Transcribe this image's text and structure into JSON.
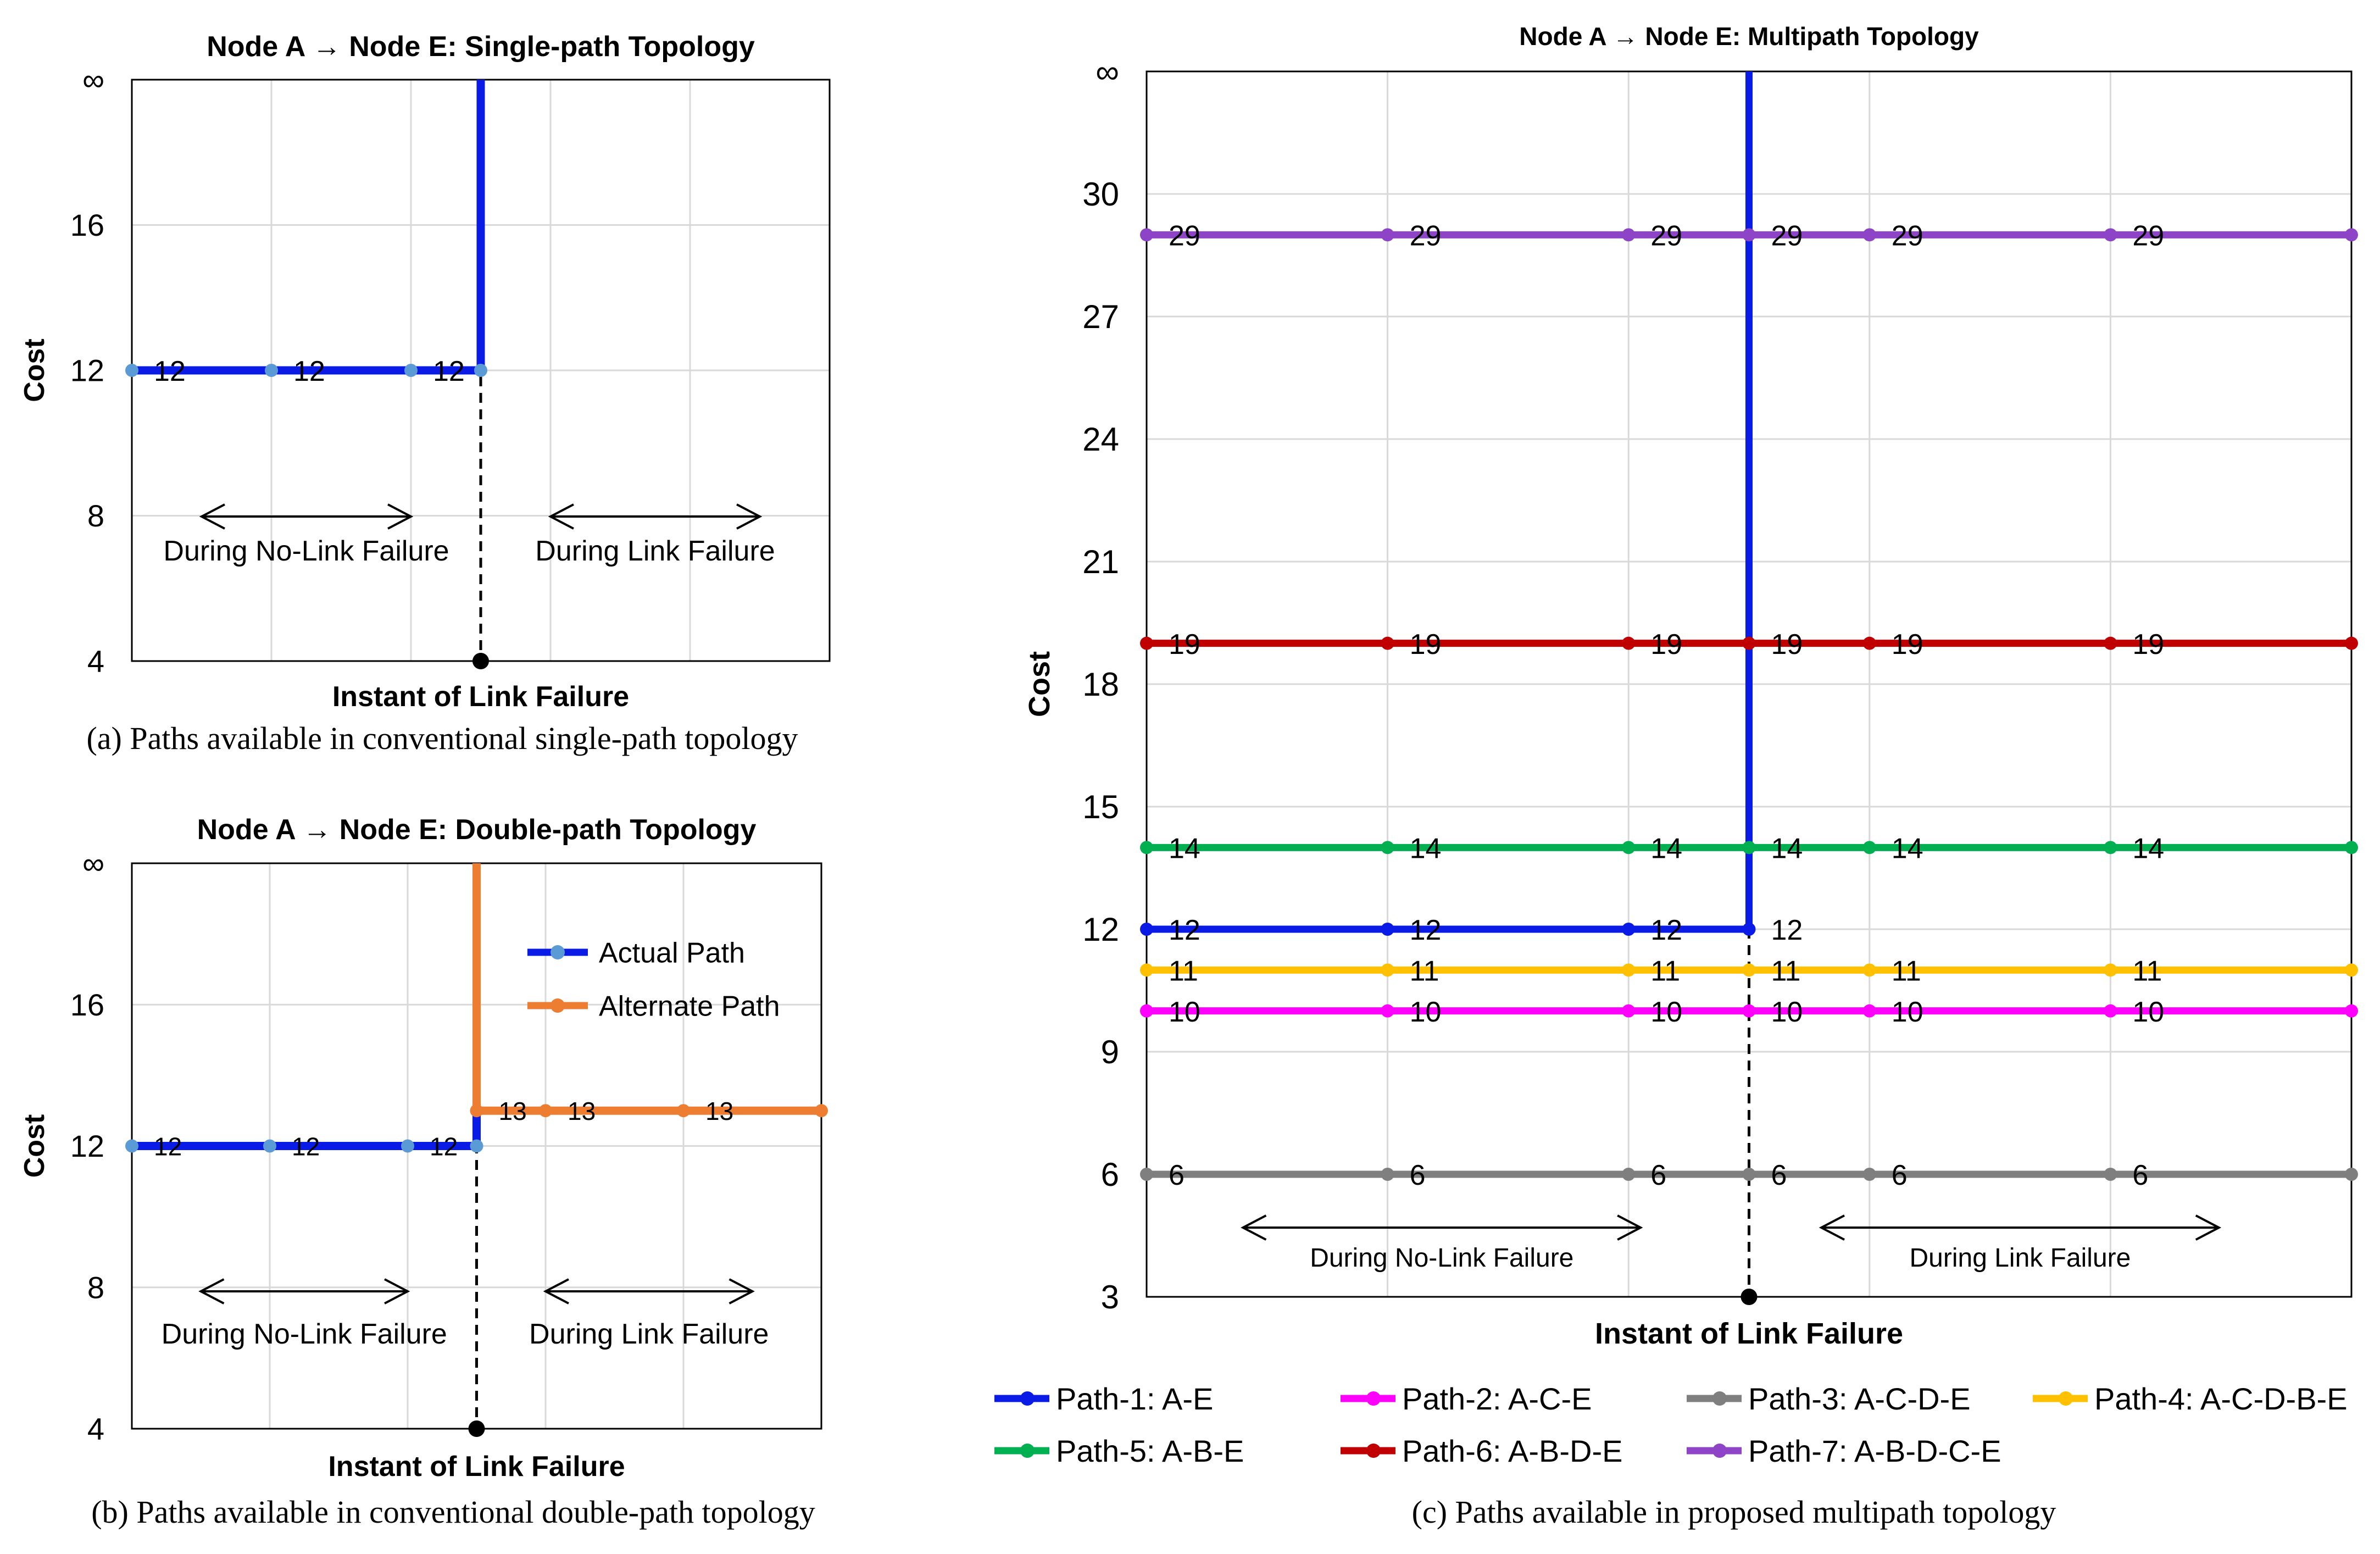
{
  "colors": {
    "actual_path": "#0a1be6",
    "actual_marker": "#5b9bd5",
    "alternate_path": "#ed7d31",
    "failure_line": "#000000",
    "grid": "#d9d9d9"
  },
  "captions": {
    "a": "(a) Paths available in conventional single-path topology",
    "b": "(b) Paths available in conventional double-path topology",
    "c": "(c) Paths available in proposed multipath topology"
  },
  "chart_data": [
    {
      "id": "a",
      "type": "line",
      "title": "Node A → Node E: Single-path Topology",
      "xlabel": "Instant of Link Failure",
      "ylabel": "Cost",
      "yticks": [
        "∞",
        "16",
        "12",
        "8",
        "4"
      ],
      "ytick_values": [
        20,
        16,
        12,
        8,
        4
      ],
      "ylim": [
        4,
        20
      ],
      "xlim": [
        0,
        10
      ],
      "grid": true,
      "failure_x": 5,
      "annotations": [
        {
          "text": "During No-Link Failure",
          "from": 1,
          "to": 4
        },
        {
          "text": "During Link Failure",
          "from": 6,
          "to": 9
        }
      ],
      "series": [
        {
          "name": "Actual Path",
          "color": "#0a1be6",
          "marker_color": "#5b9bd5",
          "x": [
            0,
            2,
            4,
            5,
            5
          ],
          "y": [
            12,
            12,
            12,
            12,
            20
          ],
          "markers": [
            0,
            1,
            2,
            3
          ],
          "labels": [
            "12",
            "12",
            "12",
            ""
          ]
        }
      ]
    },
    {
      "id": "b",
      "type": "line",
      "title": "Node A → Node E: Double-path Topology",
      "xlabel": "Instant of Link Failure",
      "ylabel": "Cost",
      "yticks": [
        "∞",
        "16",
        "12",
        "8",
        "4"
      ],
      "ytick_values": [
        20,
        16,
        12,
        8,
        4
      ],
      "ylim": [
        4,
        20
      ],
      "xlim": [
        0,
        10
      ],
      "grid": true,
      "failure_x": 5,
      "legend": [
        "Actual Path",
        "Alternate Path"
      ],
      "legend_position": "top-right",
      "annotations": [
        {
          "text": "During No-Link Failure",
          "from": 1,
          "to": 4
        },
        {
          "text": "During Link Failure",
          "from": 6,
          "to": 9
        }
      ],
      "series": [
        {
          "name": "Actual Path",
          "color": "#0a1be6",
          "marker_color": "#5b9bd5",
          "x": [
            0,
            2,
            4,
            5,
            5
          ],
          "y": [
            12,
            12,
            12,
            12,
            20
          ],
          "markers": [
            0,
            1,
            2,
            3
          ],
          "labels": [
            "12",
            "12",
            "12",
            ""
          ]
        },
        {
          "name": "Alternate Path",
          "color": "#ed7d31",
          "marker_color": "#ed7d31",
          "x": [
            5,
            5,
            6,
            8,
            10
          ],
          "y": [
            20,
            13,
            13,
            13,
            13
          ],
          "markers": [
            1,
            2,
            3,
            4
          ],
          "labels": [
            "",
            "13",
            "13",
            "13",
            ""
          ]
        }
      ]
    },
    {
      "id": "c",
      "type": "line",
      "title": "Node A → Node E: Multipath Topology",
      "xlabel": "Instant of Link Failure",
      "ylabel": "Cost",
      "yticks": [
        "∞",
        "30",
        "27",
        "24",
        "21",
        "18",
        "15",
        "12",
        "9",
        "6",
        "3"
      ],
      "ytick_values": [
        33,
        30,
        27,
        24,
        21,
        18,
        15,
        12,
        9,
        6,
        3
      ],
      "ylim": [
        3,
        33
      ],
      "xlim": [
        0,
        10
      ],
      "grid": true,
      "failure_x": 5,
      "legend_position": "bottom",
      "annotations": [
        {
          "text": "During No-Link Failure",
          "from": 0.8,
          "to": 4.1
        },
        {
          "text": "During Link Failure",
          "from": 5.6,
          "to": 8.9
        }
      ],
      "series": [
        {
          "name": "Path-1: A-E",
          "color": "#0a1be6",
          "x": [
            0,
            2,
            4,
            5,
            5
          ],
          "y": [
            12,
            12,
            12,
            12,
            33
          ],
          "markers": [
            0,
            1,
            2,
            3
          ],
          "labels": [
            "12",
            "12",
            "12",
            "12"
          ]
        },
        {
          "name": "Path-2: A-C-E",
          "color": "#ff00ff",
          "x": [
            0,
            2,
            4,
            5,
            6,
            8,
            10
          ],
          "y": [
            10,
            10,
            10,
            10,
            10,
            10,
            10
          ],
          "markers": [
            0,
            1,
            2,
            3,
            4,
            5,
            6
          ],
          "labels": [
            "10",
            "10",
            "10",
            "10",
            "10",
            "10",
            ""
          ]
        },
        {
          "name": "Path-3: A-C-D-E",
          "color": "#7f7f7f",
          "x": [
            0,
            2,
            4,
            5,
            6,
            8,
            10
          ],
          "y": [
            6,
            6,
            6,
            6,
            6,
            6,
            6
          ],
          "markers": [
            0,
            1,
            2,
            3,
            4,
            5,
            6
          ],
          "labels": [
            "6",
            "6",
            "6",
            "6",
            "6",
            "6",
            ""
          ]
        },
        {
          "name": "Path-4: A-C-D-B-E",
          "color": "#ffc000",
          "x": [
            0,
            2,
            4,
            5,
            6,
            8,
            10
          ],
          "y": [
            11,
            11,
            11,
            11,
            11,
            11,
            11
          ],
          "markers": [
            0,
            1,
            2,
            3,
            4,
            5,
            6
          ],
          "labels": [
            "11",
            "11",
            "11",
            "11",
            "11",
            "11",
            ""
          ]
        },
        {
          "name": "Path-5: A-B-E",
          "color": "#00b050",
          "x": [
            0,
            2,
            4,
            5,
            6,
            8,
            10
          ],
          "y": [
            14,
            14,
            14,
            14,
            14,
            14,
            14
          ],
          "markers": [
            0,
            1,
            2,
            3,
            4,
            5,
            6
          ],
          "labels": [
            "14",
            "14",
            "14",
            "14",
            "14",
            "14",
            ""
          ]
        },
        {
          "name": "Path-6: A-B-D-E",
          "color": "#c00000",
          "x": [
            0,
            2,
            4,
            5,
            6,
            8,
            10
          ],
          "y": [
            19,
            19,
            19,
            19,
            19,
            19,
            19
          ],
          "markers": [
            0,
            1,
            2,
            3,
            4,
            5,
            6
          ],
          "labels": [
            "19",
            "19",
            "19",
            "19",
            "19",
            "19",
            ""
          ]
        },
        {
          "name": "Path-7: A-B-D-C-E",
          "color": "#8e44c6",
          "x": [
            0,
            2,
            4,
            5,
            6,
            8,
            10
          ],
          "y": [
            29,
            29,
            29,
            29,
            29,
            29,
            29
          ],
          "markers": [
            0,
            1,
            2,
            3,
            4,
            5,
            6
          ],
          "labels": [
            "29",
            "29",
            "29",
            "29",
            "29",
            "29",
            ""
          ]
        }
      ]
    }
  ]
}
